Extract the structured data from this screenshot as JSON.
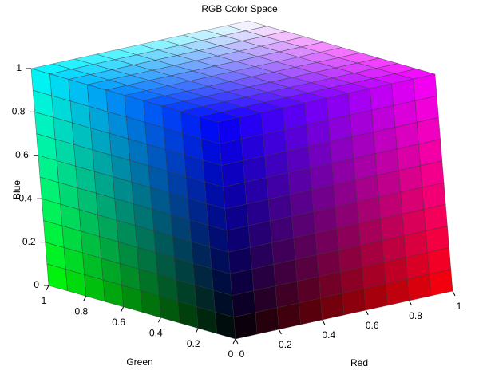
{
  "chart_data": {
    "type": "rgb-cube",
    "title": "RGB Color Space",
    "xlabel": "Red",
    "ylabel": "Green",
    "zlabel": "Blue",
    "xlim": [
      0,
      1
    ],
    "ylim": [
      0,
      1
    ],
    "zlim": [
      0,
      1
    ],
    "xticks": [
      0,
      0.2,
      0.4,
      0.6,
      0.8,
      1
    ],
    "yticks": [
      0,
      0.2,
      0.4,
      0.6,
      0.8,
      1
    ],
    "zticks": [
      0,
      0.2,
      0.4,
      0.6,
      0.8,
      1
    ],
    "grid": true
  }
}
